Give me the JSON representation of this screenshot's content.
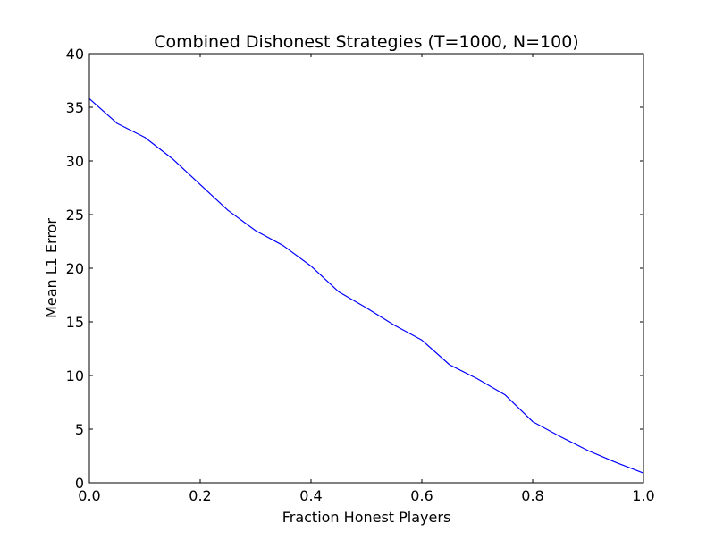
{
  "chart_data": {
    "type": "line",
    "title": "Combined Dishonest Strategies (T=1000, N=100)",
    "xlabel": "Fraction Honest Players",
    "ylabel": "Mean L1 Error",
    "xlim": [
      0.0,
      1.0
    ],
    "ylim": [
      0,
      40
    ],
    "grid": false,
    "x_ticks": [
      "0.0",
      "0.2",
      "0.4",
      "0.6",
      "0.8",
      "1.0"
    ],
    "y_ticks": [
      "0",
      "5",
      "10",
      "15",
      "20",
      "25",
      "30",
      "35",
      "40"
    ],
    "series": [
      {
        "color": "#0000ff",
        "x": [
          0.0,
          0.05,
          0.1,
          0.15,
          0.2,
          0.25,
          0.3,
          0.35,
          0.4,
          0.45,
          0.5,
          0.55,
          0.6,
          0.65,
          0.7,
          0.75,
          0.8,
          0.85,
          0.9,
          0.95,
          1.0
        ],
        "y": [
          35.8,
          33.5,
          32.2,
          30.2,
          27.8,
          25.4,
          23.5,
          22.1,
          20.2,
          17.8,
          16.3,
          14.7,
          13.3,
          11.0,
          9.7,
          8.2,
          5.7,
          4.3,
          3.0,
          1.9,
          0.9
        ]
      }
    ]
  }
}
